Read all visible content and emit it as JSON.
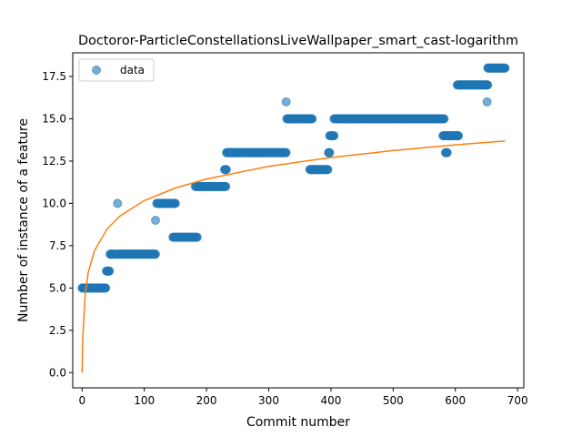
{
  "chart_data": {
    "type": "scatter",
    "title": "Doctoror-ParticleConstellationsLiveWallpaper_smart_cast-logarithm",
    "xlabel": "Commit number",
    "ylabel": "Number of instance of a feature",
    "xlim": [
      -15,
      710
    ],
    "ylim": [
      -0.9,
      18.9
    ],
    "x_ticks": [
      0,
      100,
      200,
      300,
      400,
      500,
      600,
      700
    ],
    "y_ticks": [
      0.0,
      2.5,
      5.0,
      7.5,
      10.0,
      12.5,
      15.0,
      17.5
    ],
    "y_tick_labels": [
      "0.0",
      "2.5",
      "5.0",
      "7.5",
      "10.0",
      "12.5",
      "15.0",
      "17.5"
    ],
    "grid": false,
    "legend": {
      "position": "upper-left",
      "entries": [
        "data"
      ]
    },
    "colors": {
      "data": "#1f77b4",
      "fit": "#ff7f0e"
    },
    "data_segments": [
      {
        "x_start": 0,
        "x_end": 38,
        "y": 5
      },
      {
        "x_start": 39,
        "x_end": 44,
        "y": 6
      },
      {
        "x_start": 45,
        "x_end": 54,
        "y": 7
      },
      {
        "x_start": 57,
        "x_end": 57,
        "y": 10
      },
      {
        "x_start": 58,
        "x_end": 118,
        "y": 7
      },
      {
        "x_start": 118,
        "x_end": 118,
        "y": 9
      },
      {
        "x_start": 120,
        "x_end": 150,
        "y": 10
      },
      {
        "x_start": 146,
        "x_end": 185,
        "y": 8
      },
      {
        "x_start": 182,
        "x_end": 231,
        "y": 11
      },
      {
        "x_start": 229,
        "x_end": 232,
        "y": 12
      },
      {
        "x_start": 232,
        "x_end": 328,
        "y": 13
      },
      {
        "x_start": 328,
        "x_end": 328,
        "y": 16
      },
      {
        "x_start": 329,
        "x_end": 370,
        "y": 15
      },
      {
        "x_start": 366,
        "x_end": 395,
        "y": 12
      },
      {
        "x_start": 396,
        "x_end": 398,
        "y": 13
      },
      {
        "x_start": 398,
        "x_end": 405,
        "y": 14
      },
      {
        "x_start": 405,
        "x_end": 582,
        "y": 15
      },
      {
        "x_start": 580,
        "x_end": 605,
        "y": 14
      },
      {
        "x_start": 584,
        "x_end": 587,
        "y": 13
      },
      {
        "x_start": 603,
        "x_end": 652,
        "y": 17
      },
      {
        "x_start": 651,
        "x_end": 651,
        "y": 16
      },
      {
        "x_start": 652,
        "x_end": 680,
        "y": 18
      }
    ],
    "fit_curve": {
      "type": "logarithmic",
      "x": [
        0,
        1,
        5,
        10,
        20,
        40,
        60,
        100,
        150,
        200,
        300,
        400,
        500,
        600,
        680
      ],
      "y": [
        0.0,
        1.99,
        4.65,
        5.94,
        7.21,
        8.48,
        9.23,
        10.17,
        10.91,
        11.44,
        12.19,
        12.71,
        13.12,
        13.46,
        13.69
      ]
    }
  }
}
